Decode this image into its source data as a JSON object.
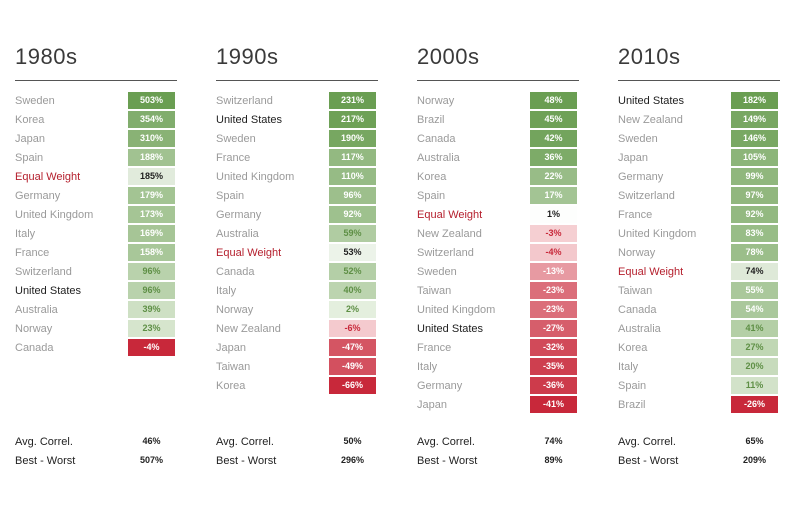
{
  "chart_data": [
    {
      "type": "table",
      "title": "1980s",
      "rows": [
        {
          "country": "Sweden",
          "value": 503,
          "label": "503%",
          "highlight": "none"
        },
        {
          "country": "Korea",
          "value": 354,
          "label": "354%",
          "highlight": "none"
        },
        {
          "country": "Japan",
          "value": 310,
          "label": "310%",
          "highlight": "none"
        },
        {
          "country": "Spain",
          "value": 188,
          "label": "188%",
          "highlight": "none"
        },
        {
          "country": "Equal Weight",
          "value": 185,
          "label": "185%",
          "highlight": "equal"
        },
        {
          "country": "Germany",
          "value": 179,
          "label": "179%",
          "highlight": "none"
        },
        {
          "country": "United Kingdom",
          "value": 173,
          "label": "173%",
          "highlight": "none"
        },
        {
          "country": "Italy",
          "value": 169,
          "label": "169%",
          "highlight": "none"
        },
        {
          "country": "France",
          "value": 158,
          "label": "158%",
          "highlight": "none"
        },
        {
          "country": "Switzerland",
          "value": 96,
          "label": "96%",
          "highlight": "none"
        },
        {
          "country": "United States",
          "value": 96,
          "label": "96%",
          "highlight": "us"
        },
        {
          "country": "Australia",
          "value": 39,
          "label": "39%",
          "highlight": "none"
        },
        {
          "country": "Norway",
          "value": 23,
          "label": "23%",
          "highlight": "none"
        },
        {
          "country": "Canada",
          "value": -4,
          "label": "-4%",
          "highlight": "none"
        }
      ],
      "avg_correl_label": "Avg. Correl.",
      "avg_correl": "46%",
      "best_worst_label": "Best - Worst",
      "best_worst": "507%"
    },
    {
      "type": "table",
      "title": "1990s",
      "rows": [
        {
          "country": "Switzerland",
          "value": 231,
          "label": "231%",
          "highlight": "none"
        },
        {
          "country": "United States",
          "value": 217,
          "label": "217%",
          "highlight": "us"
        },
        {
          "country": "Sweden",
          "value": 190,
          "label": "190%",
          "highlight": "none"
        },
        {
          "country": "France",
          "value": 117,
          "label": "117%",
          "highlight": "none"
        },
        {
          "country": "United Kingdom",
          "value": 110,
          "label": "110%",
          "highlight": "none"
        },
        {
          "country": "Spain",
          "value": 96,
          "label": "96%",
          "highlight": "none"
        },
        {
          "country": "Germany",
          "value": 92,
          "label": "92%",
          "highlight": "none"
        },
        {
          "country": "Australia",
          "value": 59,
          "label": "59%",
          "highlight": "none"
        },
        {
          "country": "Equal Weight",
          "value": 53,
          "label": "53%",
          "highlight": "equal"
        },
        {
          "country": "Canada",
          "value": 52,
          "label": "52%",
          "highlight": "none"
        },
        {
          "country": "Italy",
          "value": 40,
          "label": "40%",
          "highlight": "none"
        },
        {
          "country": "Norway",
          "value": 2,
          "label": "2%",
          "highlight": "none"
        },
        {
          "country": "New Zealand",
          "value": -6,
          "label": "-6%",
          "highlight": "none"
        },
        {
          "country": "Japan",
          "value": -47,
          "label": "-47%",
          "highlight": "none"
        },
        {
          "country": "Taiwan",
          "value": -49,
          "label": "-49%",
          "highlight": "none"
        },
        {
          "country": "Korea",
          "value": -66,
          "label": "-66%",
          "highlight": "none"
        }
      ],
      "avg_correl_label": "Avg. Correl.",
      "avg_correl": "50%",
      "best_worst_label": "Best - Worst",
      "best_worst": "296%"
    },
    {
      "type": "table",
      "title": "2000s",
      "rows": [
        {
          "country": "Norway",
          "value": 48,
          "label": "48%",
          "highlight": "none"
        },
        {
          "country": "Brazil",
          "value": 45,
          "label": "45%",
          "highlight": "none"
        },
        {
          "country": "Canada",
          "value": 42,
          "label": "42%",
          "highlight": "none"
        },
        {
          "country": "Australia",
          "value": 36,
          "label": "36%",
          "highlight": "none"
        },
        {
          "country": "Korea",
          "value": 22,
          "label": "22%",
          "highlight": "none"
        },
        {
          "country": "Spain",
          "value": 17,
          "label": "17%",
          "highlight": "none"
        },
        {
          "country": "Equal Weight",
          "value": 1,
          "label": "1%",
          "highlight": "equal"
        },
        {
          "country": "New Zealand",
          "value": -3,
          "label": "-3%",
          "highlight": "none"
        },
        {
          "country": "Switzerland",
          "value": -4,
          "label": "-4%",
          "highlight": "none"
        },
        {
          "country": "Sweden",
          "value": -13,
          "label": "-13%",
          "highlight": "none"
        },
        {
          "country": "Taiwan",
          "value": -23,
          "label": "-23%",
          "highlight": "none"
        },
        {
          "country": "United Kingdom",
          "value": -23,
          "label": "-23%",
          "highlight": "none"
        },
        {
          "country": "United States",
          "value": -27,
          "label": "-27%",
          "highlight": "us"
        },
        {
          "country": "France",
          "value": -32,
          "label": "-32%",
          "highlight": "none"
        },
        {
          "country": "Italy",
          "value": -35,
          "label": "-35%",
          "highlight": "none"
        },
        {
          "country": "Germany",
          "value": -36,
          "label": "-36%",
          "highlight": "none"
        },
        {
          "country": "Japan",
          "value": -41,
          "label": "-41%",
          "highlight": "none"
        }
      ],
      "avg_correl_label": "Avg. Correl.",
      "avg_correl": "74%",
      "best_worst_label": "Best - Worst",
      "best_worst": "89%"
    },
    {
      "type": "table",
      "title": "2010s",
      "rows": [
        {
          "country": "United States",
          "value": 182,
          "label": "182%",
          "highlight": "us"
        },
        {
          "country": "New Zealand",
          "value": 149,
          "label": "149%",
          "highlight": "none"
        },
        {
          "country": "Sweden",
          "value": 146,
          "label": "146%",
          "highlight": "none"
        },
        {
          "country": "Japan",
          "value": 105,
          "label": "105%",
          "highlight": "none"
        },
        {
          "country": "Germany",
          "value": 99,
          "label": "99%",
          "highlight": "none"
        },
        {
          "country": "Switzerland",
          "value": 97,
          "label": "97%",
          "highlight": "none"
        },
        {
          "country": "France",
          "value": 92,
          "label": "92%",
          "highlight": "none"
        },
        {
          "country": "United Kingdom",
          "value": 83,
          "label": "83%",
          "highlight": "none"
        },
        {
          "country": "Norway",
          "value": 78,
          "label": "78%",
          "highlight": "none"
        },
        {
          "country": "Equal Weight",
          "value": 74,
          "label": "74%",
          "highlight": "equal"
        },
        {
          "country": "Taiwan",
          "value": 55,
          "label": "55%",
          "highlight": "none"
        },
        {
          "country": "Canada",
          "value": 54,
          "label": "54%",
          "highlight": "none"
        },
        {
          "country": "Australia",
          "value": 41,
          "label": "41%",
          "highlight": "none"
        },
        {
          "country": "Korea",
          "value": 27,
          "label": "27%",
          "highlight": "none"
        },
        {
          "country": "Italy",
          "value": 20,
          "label": "20%",
          "highlight": "none"
        },
        {
          "country": "Spain",
          "value": 11,
          "label": "11%",
          "highlight": "none"
        },
        {
          "country": "Brazil",
          "value": -26,
          "label": "-26%",
          "highlight": "none"
        }
      ],
      "avg_correl_label": "Avg. Correl.",
      "avg_correl": "65%",
      "best_worst_label": "Best - Worst",
      "best_worst": "209%"
    }
  ],
  "colors": {
    "positive_strong": "#6a9e52",
    "positive_light": "#eef5e9",
    "negative_light": "#fbe6e7",
    "negative_strong": "#c8283a",
    "neutral": "#ffffff",
    "country_text": "#9a9a9a",
    "us_text": "#1e1e1e",
    "equal_weight_text": "#b5202e"
  }
}
